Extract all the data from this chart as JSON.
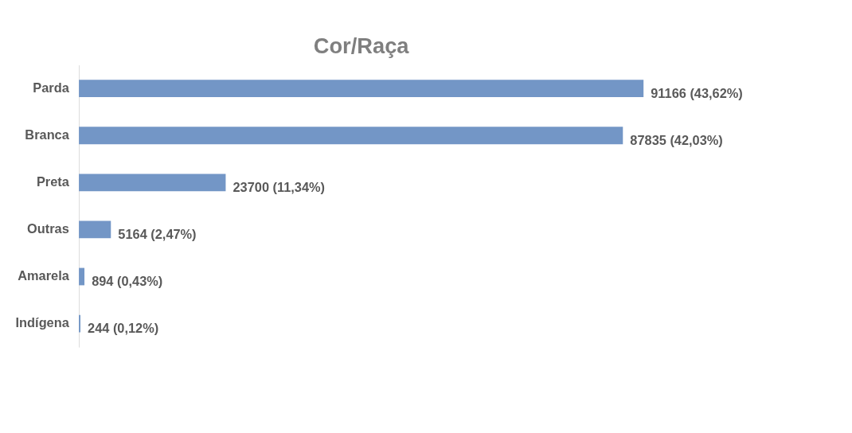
{
  "chart_data": {
    "type": "bar",
    "orientation": "horizontal",
    "title": "Cor/Raça",
    "categories": [
      "Parda",
      "Branca",
      "Preta",
      "Outras",
      "Amarela",
      "Indígena"
    ],
    "values": [
      91166,
      87835,
      23700,
      5164,
      894,
      244
    ],
    "value_labels": [
      "91166 (43,62%)",
      "87835 (42,03%)",
      "23700 (11,34%)",
      "5164 (2,47%)",
      "894 (0,43%)",
      "244 (0,12%)"
    ],
    "color": "#7396c6"
  }
}
